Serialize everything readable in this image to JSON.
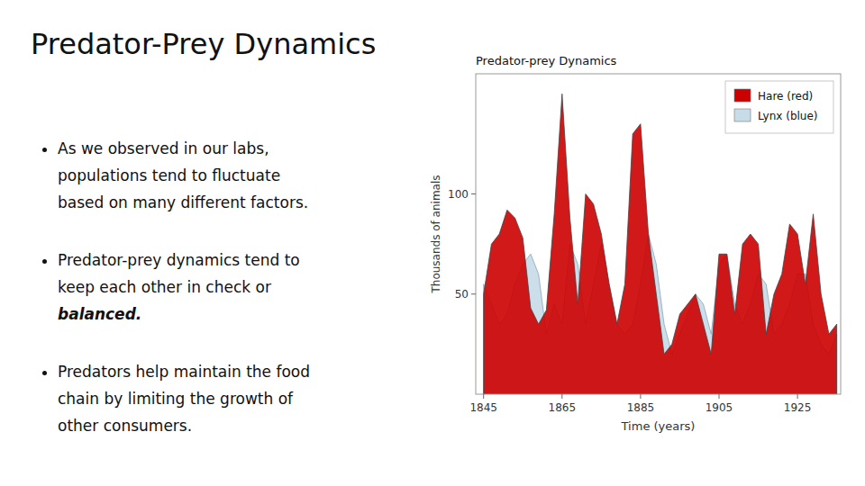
{
  "title": "Predator-Prey Dynamics",
  "bullets": [
    [
      "As we observed in our labs,",
      "populations tend to fluctuate",
      "based on many different factors."
    ],
    [
      "Predator-prey dynamics tend to",
      "keep each other in check or",
      "balanced."
    ],
    [
      "Predators help maintain the food",
      "chain by limiting the growth of",
      "other consumers."
    ]
  ],
  "chart_data": {
    "type": "area",
    "title": "Predator-prey Dynamics",
    "x_label": "Time (years)",
    "y_label": "Thousands of animals",
    "x": [
      1845,
      1847,
      1849,
      1851,
      1853,
      1855,
      1857,
      1859,
      1861,
      1863,
      1865,
      1867,
      1869,
      1871,
      1873,
      1875,
      1877,
      1879,
      1881,
      1883,
      1885,
      1887,
      1889,
      1891,
      1893,
      1895,
      1897,
      1899,
      1901,
      1903,
      1905,
      1907,
      1909,
      1911,
      1913,
      1915,
      1917,
      1919,
      1921,
      1923,
      1925,
      1927,
      1929,
      1931,
      1933,
      1935
    ],
    "series": [
      {
        "name": "Hare (red)",
        "color": "#cc0000",
        "values": [
          50,
          75,
          80,
          92,
          88,
          78,
          43,
          35,
          42,
          90,
          150,
          88,
          45,
          100,
          95,
          80,
          55,
          35,
          55,
          130,
          135,
          80,
          50,
          20,
          25,
          40,
          45,
          50,
          35,
          20,
          70,
          70,
          40,
          75,
          80,
          75,
          30,
          50,
          60,
          85,
          80,
          55,
          90,
          50,
          30,
          35
        ]
      },
      {
        "name": "Lynx (blue)",
        "color": "#c8dce8",
        "values": [
          55,
          45,
          35,
          40,
          55,
          65,
          70,
          60,
          30,
          45,
          35,
          75,
          65,
          35,
          55,
          75,
          55,
          35,
          30,
          35,
          55,
          80,
          65,
          35,
          20,
          30,
          40,
          50,
          45,
          30,
          65,
          70,
          45,
          35,
          45,
          60,
          55,
          30,
          35,
          45,
          60,
          60,
          35,
          25,
          20,
          30
        ]
      }
    ],
    "xlim": [
      1843,
      1936
    ],
    "xticks": [
      1845,
      1865,
      1885,
      1905,
      1925
    ],
    "ylim": [
      0,
      160
    ],
    "yticks": [
      50,
      100
    ],
    "grid": false,
    "legend": "upper right"
  }
}
